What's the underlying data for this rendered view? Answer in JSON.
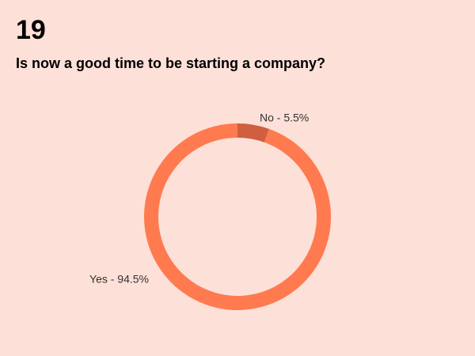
{
  "slide_number": "19",
  "chart_data": {
    "type": "donut",
    "title": "Is now a good time to be starting a company?",
    "values": [
      5.5,
      94.5
    ],
    "value_labels": [
      "No - 5.5%",
      "Yes - 94.5%"
    ],
    "colors": [
      "#cf5f3f",
      "#ff7a4f"
    ]
  }
}
